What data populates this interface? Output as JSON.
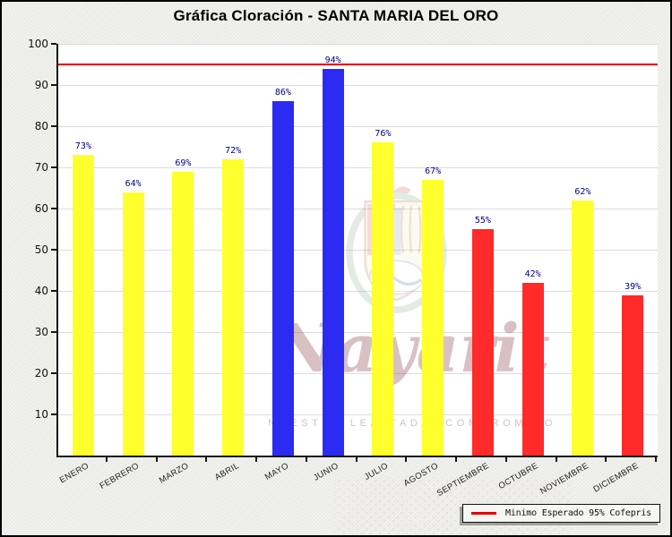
{
  "frame": {
    "title": "Gráfica Cloración - SANTA MARIA DEL ORO"
  },
  "chart_data": {
    "type": "bar",
    "title": "Gráfica Cloración - SANTA MARIA DEL ORO",
    "categories": [
      "ENERO",
      "FEBRERO",
      "MARZO",
      "ABRIL",
      "MAYO",
      "JUNIO",
      "JULIO",
      "AGOSTO",
      "SEPTIEMBRE",
      "OCTUBRE",
      "NOVIEMBRE",
      "DICIEMBRE"
    ],
    "values": [
      73,
      64,
      69,
      72,
      86,
      94,
      76,
      67,
      55,
      42,
      62,
      39
    ],
    "bar_colors": [
      "yellow",
      "yellow",
      "yellow",
      "yellow",
      "blue",
      "blue",
      "yellow",
      "yellow",
      "red",
      "red",
      "yellow",
      "red"
    ],
    "unit": "%",
    "xlabel": "",
    "ylabel": "",
    "ylim": [
      0,
      100
    ],
    "yticks": [
      10,
      20,
      30,
      40,
      50,
      60,
      70,
      80,
      90,
      100
    ],
    "grid": true,
    "legend_position": "bottom-right",
    "threshold_line": {
      "value": 95,
      "color": "#e10000",
      "label": "Minimo Esperado 95% Cofepris"
    }
  },
  "palette": {
    "yellow": "#ffff2e",
    "blue": "#2b2bf2",
    "red": "#ff2a2a",
    "threshold": "#e10000",
    "value_label": "#000085",
    "grid": "#dcdcdc",
    "axis": "#151515",
    "plot_bg": "#ffffff",
    "frame_bg": "#ecece9"
  },
  "legend": {
    "label": "Minimo Esperado 95% Cofepris"
  },
  "watermark": {
    "icon": "nayarit-coat-of-arms",
    "script_text": "Nayarit",
    "slogan_text": "NUESTRA LEALTAD Y COMPROMISO"
  }
}
